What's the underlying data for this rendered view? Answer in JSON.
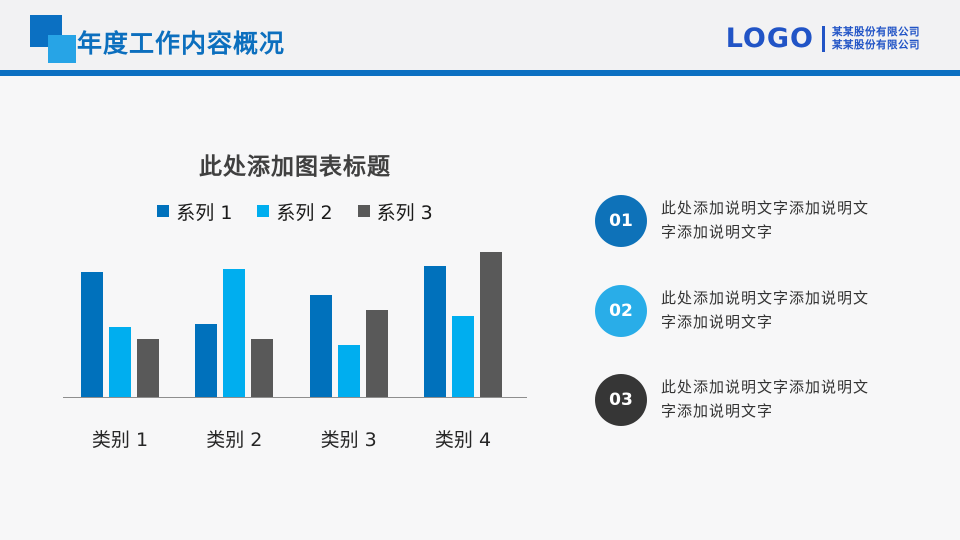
{
  "header": {
    "title": "年度工作内容概况",
    "accent_color": "#0c70c2",
    "logo": {
      "text": "LOGO",
      "color": "#2154c6",
      "company_line1": "某某股份有限公司",
      "company_line2": "某某股份有限公司"
    }
  },
  "chart_data": {
    "type": "bar",
    "title": "此处添加图表标题",
    "categories": [
      "类别 1",
      "类别 2",
      "类别 3",
      "类别 4"
    ],
    "series": [
      {
        "name": "系列 1",
        "color": "#0071bc",
        "values": [
          4.3,
          2.5,
          3.5,
          4.5
        ]
      },
      {
        "name": "系列 2",
        "color": "#00aeef",
        "values": [
          2.4,
          4.4,
          1.8,
          2.8
        ]
      },
      {
        "name": "系列 3",
        "color": "#595959",
        "values": [
          2.0,
          2.0,
          3.0,
          5.0
        ]
      }
    ],
    "ylim": [
      0,
      5
    ],
    "grid": false,
    "value_axis_hidden": true,
    "legend_position": "top"
  },
  "points": [
    {
      "number": "01",
      "color": "#0e72b9",
      "text": "此处添加说明文字添加说明文字添加说明文字"
    },
    {
      "number": "02",
      "color": "#29ade8",
      "text": "此处添加说明文字添加说明文字添加说明文字"
    },
    {
      "number": "03",
      "color": "#363636",
      "text": "此处添加说明文字添加说明文字添加说明文字"
    }
  ]
}
